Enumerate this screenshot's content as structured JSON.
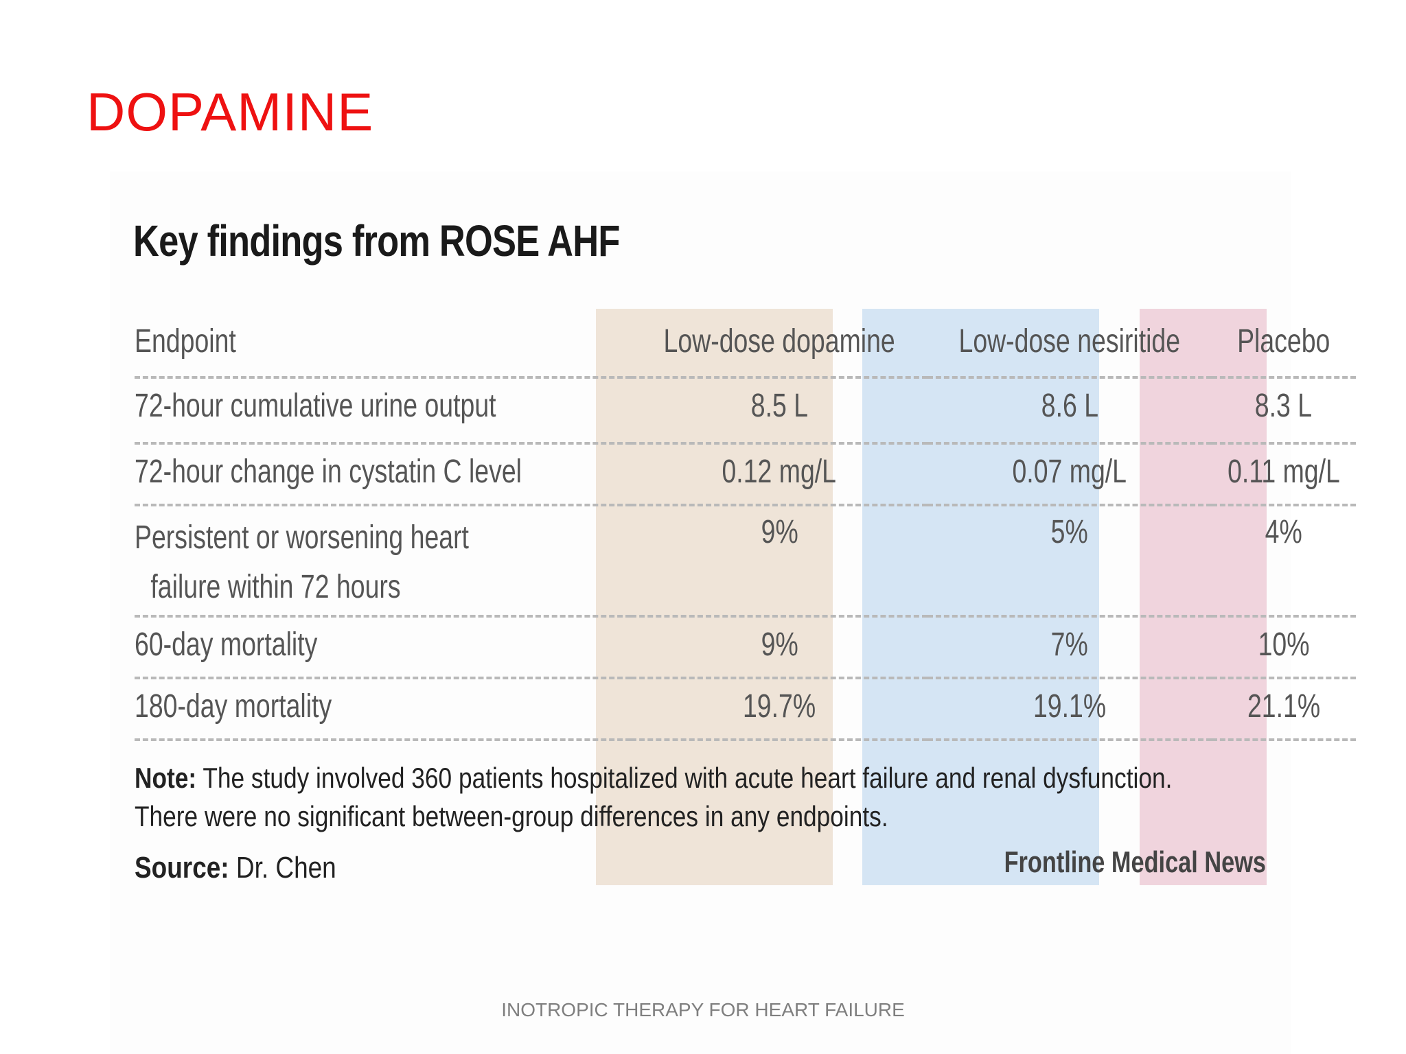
{
  "slide": {
    "title": "DOPAMINE",
    "footer": "INOTROPIC THERAPY FOR HEART FAILURE"
  },
  "figure": {
    "heading": "Key findings from ROSE AHF",
    "columns": {
      "endpoint": "Endpoint",
      "dopamine": "Low-dose dopamine",
      "nesiritide": "Low-dose nesiritide",
      "placebo": "Placebo"
    },
    "column_colors": {
      "dopamine": "#efe4d8",
      "nesiritide": "#d5e5f4",
      "placebo": "#f0d4dd"
    },
    "rows": [
      {
        "endpoint": "72-hour cumulative urine output",
        "dopamine": "8.5 L",
        "nesiritide": "8.6 L",
        "placebo": "8.3 L"
      },
      {
        "endpoint": "72-hour change in cystatin C level",
        "dopamine": "0.12 mg/L",
        "nesiritide": "0.07 mg/L",
        "placebo": "0.11 mg/L"
      },
      {
        "endpoint_line1": "Persistent or worsening heart",
        "endpoint_line2": "failure within 72 hours",
        "dopamine": "9%",
        "nesiritide": "5%",
        "placebo": "4%"
      },
      {
        "endpoint": "60-day mortality",
        "dopamine": "9%",
        "nesiritide": "7%",
        "placebo": "10%"
      },
      {
        "endpoint": "180-day mortality",
        "dopamine": "19.7%",
        "nesiritide": "19.1%",
        "placebo": "21.1%"
      }
    ],
    "note": {
      "label": "Note:",
      "line1": " The study involved 360 patients hospitalized with acute heart failure and renal dysfunction.",
      "line2": "There were no significant between-group differences in any endpoints."
    },
    "source": {
      "label": "Source:",
      "value": " Dr. Chen"
    },
    "credit": "Frontline Medical News"
  }
}
